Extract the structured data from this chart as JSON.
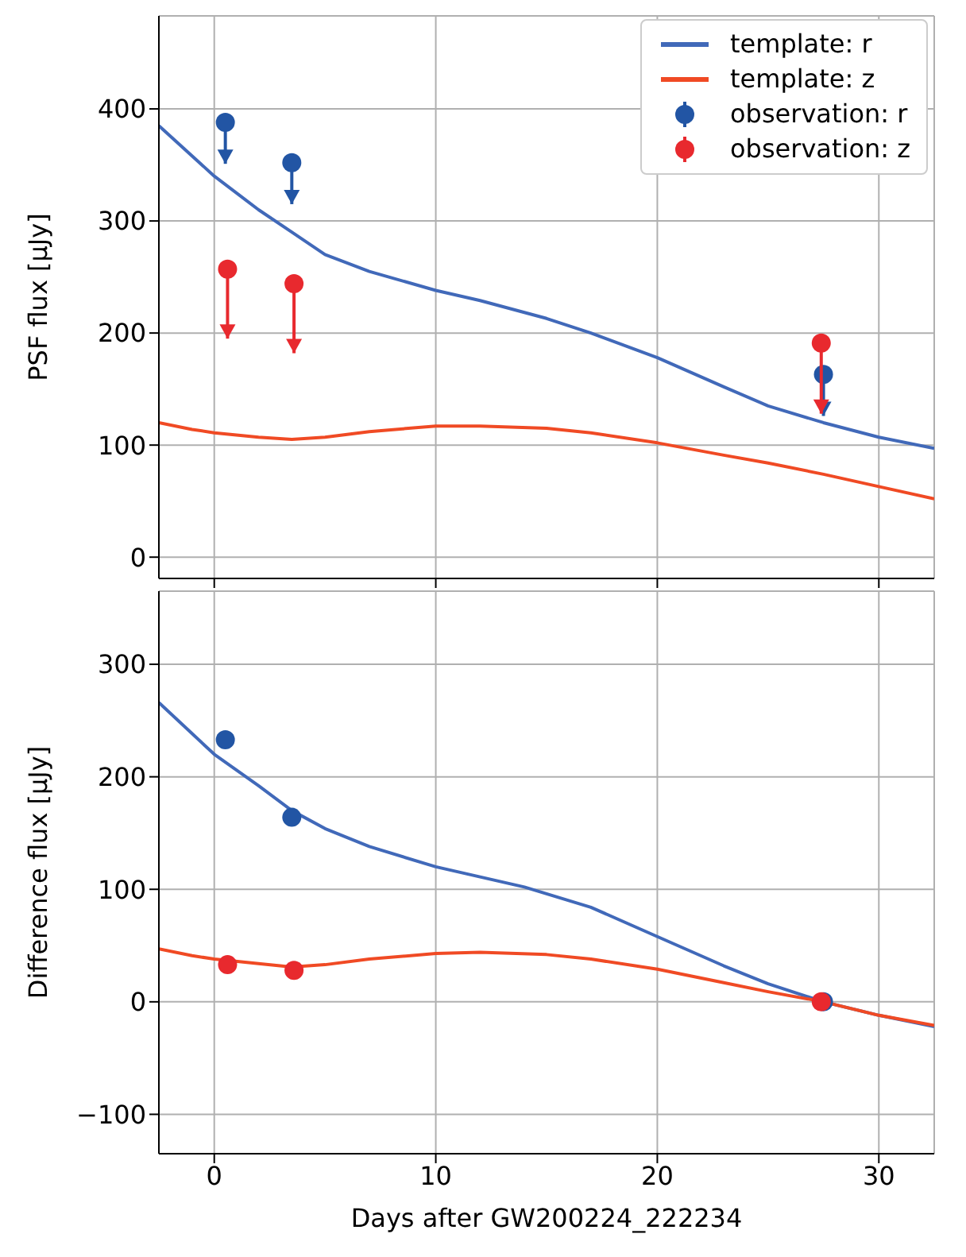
{
  "chart_data": [
    {
      "type": "line",
      "ylabel": "PSF flux [μJy]",
      "xlim": [
        -2.5,
        32.5
      ],
      "xticks": [
        0,
        10,
        20,
        30
      ],
      "ylim": [
        -19,
        483
      ],
      "yticks": [
        0,
        100,
        200,
        300,
        400
      ],
      "grid": true,
      "legend": "top right",
      "tick_labels": "y",
      "series": [
        {
          "name": "template: r",
          "color": "#4169b9",
          "x": [
            -2.5,
            0,
            2,
            3.5,
            5,
            7,
            10,
            12,
            15,
            17,
            20,
            23,
            25,
            27.5,
            30,
            32.5
          ],
          "values": [
            385,
            340,
            310,
            290,
            270,
            255,
            238,
            229,
            213,
            200,
            178,
            152,
            135,
            120,
            107,
            97
          ]
        },
        {
          "name": "template: z",
          "color": "#f04a24",
          "x": [
            -2.5,
            -1,
            0,
            2,
            3.5,
            5,
            7,
            10,
            12,
            15,
            17,
            20,
            23,
            25,
            27.5,
            30,
            32.5
          ],
          "values": [
            120,
            114,
            111,
            107,
            105,
            107,
            112,
            117,
            117,
            115,
            111,
            102,
            91,
            84,
            74,
            63,
            52
          ]
        },
        {
          "name": "observation: r",
          "type": "scatter",
          "color": "#2255a4",
          "x": [
            0.5,
            3.5,
            27.5
          ],
          "values": [
            388,
            352,
            163
          ],
          "errors": [
            [
              351,
              388
            ],
            [
              315,
              352
            ],
            [
              126,
              163
            ]
          ]
        },
        {
          "name": "observation: z",
          "type": "scatter",
          "color": "#e8292e",
          "x": [
            0.6,
            3.6,
            27.4
          ],
          "values": [
            257,
            244,
            191
          ],
          "errors": [
            [
              195,
              257
            ],
            [
              182,
              244
            ],
            [
              128,
              191
            ]
          ]
        }
      ]
    },
    {
      "type": "line",
      "xlabel": "Days after GW200224_222234",
      "ylabel": "Difference flux [μJy]",
      "xlim": [
        -2.5,
        32.5
      ],
      "xticks": [
        0,
        10,
        20,
        30
      ],
      "ylim": [
        -135,
        365
      ],
      "yticks": [
        -100,
        0,
        100,
        200,
        300
      ],
      "grid": true,
      "series": [
        {
          "color": "#4169b9",
          "x": [
            -2.5,
            0,
            2,
            3.5,
            5,
            7,
            10,
            12,
            14,
            17,
            20,
            23,
            25,
            27.5,
            30,
            32.5
          ],
          "values": [
            266,
            220,
            192,
            170,
            154,
            138,
            120,
            111,
            102,
            84,
            58,
            32,
            16,
            0,
            -12,
            -22
          ]
        },
        {
          "color": "#f04a24",
          "x": [
            -2.5,
            -1,
            0,
            2,
            3.5,
            5,
            7,
            10,
            12,
            15,
            17,
            20,
            23,
            25,
            27.5,
            30,
            32.5
          ],
          "values": [
            47,
            41,
            38,
            34,
            31,
            33,
            38,
            43,
            44,
            42,
            38,
            29,
            17,
            9,
            0,
            -12,
            -21
          ]
        },
        {
          "type": "scatter",
          "color": "#2255a4",
          "x": [
            0.5,
            3.5,
            27.5
          ],
          "values": [
            233,
            164,
            0
          ]
        },
        {
          "type": "scatter",
          "color": "#e8292e",
          "x": [
            0.6,
            3.6,
            27.4
          ],
          "values": [
            33,
            28,
            0
          ]
        }
      ]
    }
  ]
}
